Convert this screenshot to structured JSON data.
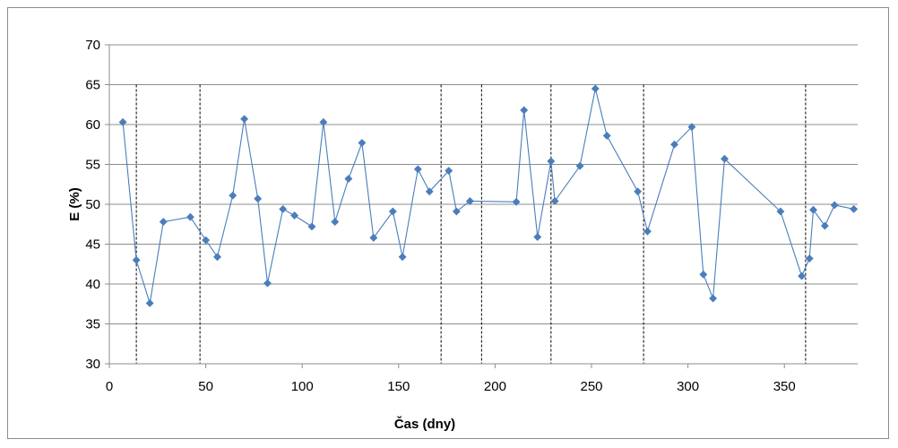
{
  "chart_data": {
    "type": "scatter",
    "title": "",
    "xlabel": "Čas (dny)",
    "ylabel": "E (%)",
    "xlim": [
      0,
      388
    ],
    "ylim": [
      30,
      70
    ],
    "x_ticks": [
      0,
      50,
      100,
      150,
      200,
      250,
      300,
      350
    ],
    "y_ticks": [
      30,
      35,
      40,
      45,
      50,
      55,
      60,
      65,
      70
    ],
    "grid": "horizontal",
    "legend": "none",
    "series_color": "#4a7ebb",
    "marker": "diamond",
    "connect_points": true,
    "vertical_markers": [
      14,
      47,
      172,
      193,
      229,
      277,
      361
    ],
    "x": [
      7,
      14,
      21,
      28,
      42,
      50,
      56,
      64,
      70,
      77,
      82,
      90,
      96,
      105,
      111,
      117,
      124,
      131,
      137,
      147,
      152,
      160,
      166,
      176,
      180,
      187,
      211,
      215,
      222,
      229,
      231,
      244,
      252,
      258,
      274,
      279,
      293,
      302,
      308,
      313,
      319,
      348,
      359,
      363,
      365,
      371,
      376,
      386
    ],
    "y": [
      60.3,
      43.0,
      37.6,
      47.8,
      48.4,
      45.5,
      43.4,
      51.1,
      60.7,
      50.7,
      40.1,
      49.4,
      48.6,
      47.2,
      60.3,
      47.8,
      53.2,
      57.7,
      45.8,
      49.1,
      43.4,
      54.4,
      51.6,
      54.2,
      49.1,
      50.4,
      50.3,
      61.8,
      45.9,
      55.4,
      50.4,
      54.8,
      64.5,
      58.6,
      51.6,
      46.6,
      57.5,
      59.7,
      41.2,
      38.2,
      55.7,
      49.1,
      41.0,
      43.2,
      49.3,
      47.3,
      49.9,
      49.4
    ]
  }
}
